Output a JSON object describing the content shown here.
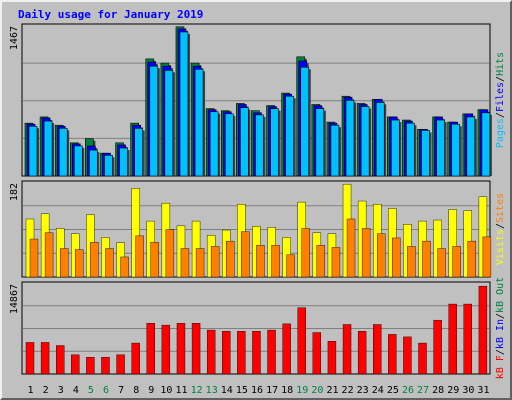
{
  "title": "Daily usage for January 2019",
  "colors": {
    "pages": "#00c0ff",
    "files": "#0000ff",
    "hits": "#008040",
    "visits": "#ffff00",
    "sites": "#ff8000",
    "kbin": "#0000ff",
    "kbout": "#008040",
    "kbf": "#ff0000",
    "weekday": "#000000",
    "weekend": "#008040",
    "separator": "#000000"
  },
  "chart_data": [
    {
      "type": "bar",
      "panel": "hits",
      "ylim": [
        0,
        1467
      ],
      "ytick_label": "1467",
      "categories": [
        "1",
        "2",
        "3",
        "4",
        "5",
        "6",
        "7",
        "8",
        "9",
        "10",
        "11",
        "12",
        "13",
        "14",
        "15",
        "16",
        "17",
        "18",
        "19",
        "20",
        "21",
        "22",
        "23",
        "24",
        "25",
        "26",
        "27",
        "28",
        "29",
        "30",
        "31"
      ],
      "legend": [
        "Pages",
        "/",
        "Files",
        "/",
        "Hits"
      ],
      "series": [
        {
          "name": "Hits",
          "values": [
            510,
            570,
            490,
            320,
            360,
            220,
            320,
            510,
            1130,
            1090,
            1440,
            1090,
            650,
            630,
            700,
            630,
            680,
            800,
            1150,
            690,
            520,
            770,
            700,
            740,
            570,
            540,
            450,
            570,
            520,
            600,
            640
          ]
        },
        {
          "name": "Files",
          "values": [
            500,
            560,
            480,
            310,
            290,
            220,
            300,
            490,
            1100,
            1060,
            1420,
            1060,
            640,
            620,
            690,
            610,
            670,
            790,
            1110,
            680,
            510,
            760,
            690,
            740,
            570,
            530,
            450,
            570,
            520,
            600,
            640
          ]
        },
        {
          "name": "Pages",
          "values": [
            480,
            530,
            460,
            290,
            250,
            200,
            270,
            460,
            1060,
            1020,
            1390,
            1030,
            620,
            600,
            660,
            590,
            650,
            770,
            1050,
            650,
            490,
            730,
            670,
            710,
            540,
            510,
            440,
            540,
            500,
            570,
            610
          ]
        }
      ]
    },
    {
      "type": "bar",
      "panel": "visits",
      "ylim": [
        0,
        182
      ],
      "ytick_label": "182",
      "categories": [
        "1",
        "2",
        "3",
        "4",
        "5",
        "6",
        "7",
        "8",
        "9",
        "10",
        "11",
        "12",
        "13",
        "14",
        "15",
        "16",
        "17",
        "18",
        "19",
        "20",
        "21",
        "22",
        "23",
        "24",
        "25",
        "26",
        "27",
        "28",
        "29",
        "30",
        "31"
      ],
      "legend": [
        "Visits",
        "/",
        "Sites"
      ],
      "series": [
        {
          "name": "Visits",
          "values": [
            110,
            120,
            92,
            82,
            118,
            75,
            65,
            168,
            106,
            140,
            97,
            106,
            79,
            89,
            138,
            96,
            94,
            75,
            142,
            84,
            82,
            176,
            144,
            138,
            130,
            100,
            106,
            108,
            128,
            126,
            152
          ]
        },
        {
          "name": "Sites",
          "values": [
            72,
            84,
            54,
            52,
            66,
            54,
            38,
            78,
            66,
            90,
            54,
            54,
            58,
            68,
            86,
            60,
            60,
            42,
            92,
            60,
            56,
            110,
            92,
            82,
            74,
            58,
            68,
            54,
            58,
            68,
            76
          ]
        }
      ]
    },
    {
      "type": "bar",
      "panel": "kb",
      "ylim": [
        0,
        14867
      ],
      "ytick_label": "14867",
      "categories": [
        "1",
        "2",
        "3",
        "4",
        "5",
        "6",
        "7",
        "8",
        "9",
        "10",
        "11",
        "12",
        "13",
        "14",
        "15",
        "16",
        "17",
        "18",
        "19",
        "20",
        "21",
        "22",
        "23",
        "24",
        "25",
        "26",
        "27",
        "28",
        "29",
        "30",
        "31"
      ],
      "legend": [
        "kB F",
        "/",
        "kB In",
        "/",
        "kB Out"
      ],
      "series": [
        {
          "name": "kB F",
          "values": [
            5100,
            5100,
            4600,
            3100,
            2700,
            2700,
            3100,
            5000,
            8200,
            7900,
            8200,
            8200,
            7100,
            6900,
            6900,
            6900,
            7100,
            8100,
            10700,
            6700,
            5300,
            8000,
            6900,
            8000,
            6400,
            6000,
            5000,
            8700,
            11300,
            11300,
            14200
          ]
        }
      ]
    }
  ]
}
